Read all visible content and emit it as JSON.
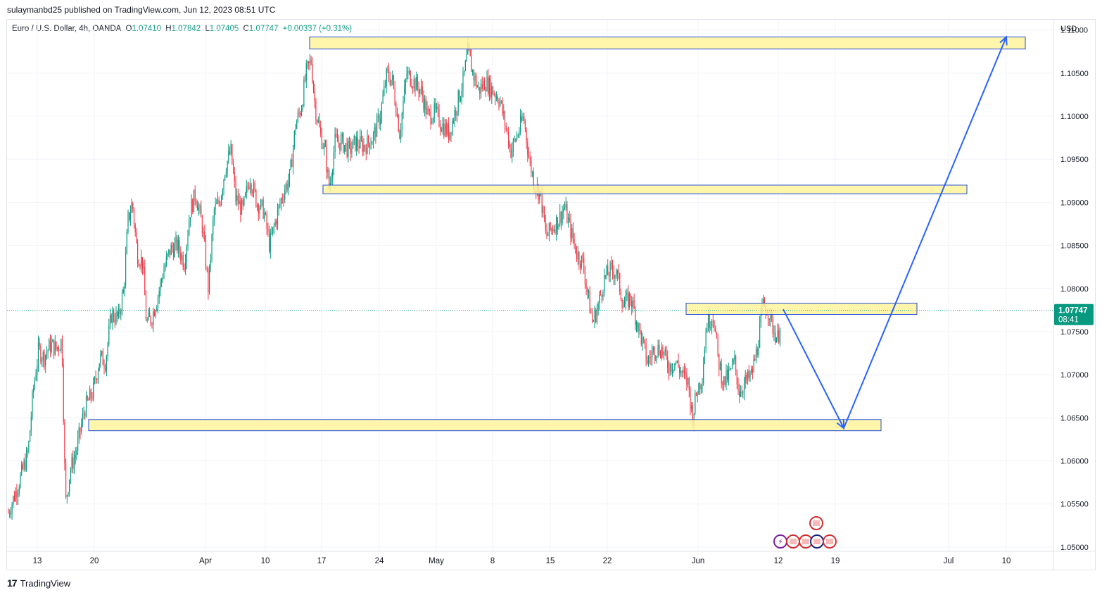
{
  "header": {
    "text": "sulaymanbd25 published on TradingView.com, Jun 12, 2023 08:51 UTC"
  },
  "symbol": {
    "name": "Euro / U.S. Dollar, 4h, OANDA",
    "open_label": "O",
    "open": "1.07410",
    "high_label": "H",
    "high": "1.07842",
    "low_label": "L",
    "low": "1.07405",
    "close_label": "C",
    "close": "1.07747",
    "change": "+0.00337 (+0.31%)"
  },
  "currency": "USD",
  "price_tag": {
    "price": "1.07747",
    "countdown": "08:41",
    "color": "#089981"
  },
  "colors": {
    "up": "#089981",
    "down": "#f23645",
    "zone_fill": "#fff59d",
    "zone_border": "#1e4bd8",
    "arrow": "#2962ff",
    "grid": "#f0f3fa"
  },
  "footer": {
    "brand": "TradingView"
  },
  "chart_data": {
    "type": "candlestick",
    "title": "Euro / U.S. Dollar, 4h, OANDA",
    "ylim": [
      1.0495,
      1.1112
    ],
    "y_ticks": [
      "1.05000",
      "1.05500",
      "1.06000",
      "1.06500",
      "1.07000",
      "1.07500",
      "1.08000",
      "1.08500",
      "1.09000",
      "1.09500",
      "1.10000",
      "1.10500",
      "1.11000"
    ],
    "x_ticks": [
      {
        "label": "13",
        "x": 53
      },
      {
        "label": "20",
        "x": 134
      },
      {
        "label": "Apr",
        "x": 292
      },
      {
        "label": "10",
        "x": 377
      },
      {
        "label": "17",
        "x": 457
      },
      {
        "label": "24",
        "x": 539
      },
      {
        "label": "May",
        "x": 620
      },
      {
        "label": "8",
        "x": 700
      },
      {
        "label": "15",
        "x": 782
      },
      {
        "label": "22",
        "x": 863
      },
      {
        "label": "Jun",
        "x": 992
      },
      {
        "label": "12",
        "x": 1106
      },
      {
        "label": "19",
        "x": 1187
      },
      {
        "label": "Jul",
        "x": 1348
      },
      {
        "label": "10",
        "x": 1430
      }
    ],
    "last_price": 1.07747,
    "zones": [
      {
        "name": "resistance-top",
        "x0": 440,
        "x1": 1457,
        "y0": 1.1078,
        "y1": 1.1092
      },
      {
        "name": "resistance-mid",
        "x0": 459,
        "x1": 1374,
        "y0": 1.091,
        "y1": 1.092
      },
      {
        "name": "current-zone",
        "x0": 975,
        "x1": 1303,
        "y0": 1.077,
        "y1": 1.0783
      },
      {
        "name": "support-bottom",
        "x0": 126,
        "x1": 1252,
        "y0": 1.0635,
        "y1": 1.0648
      }
    ],
    "projection": [
      {
        "x": 1113,
        "y": 1.0776
      },
      {
        "x": 1199,
        "y": 1.0638
      },
      {
        "x": 1430,
        "y": 1.1092
      }
    ],
    "close_path": [
      {
        "x": 12,
        "y": 1.054
      },
      {
        "x": 25,
        "y": 1.057
      },
      {
        "x": 40,
        "y": 1.061
      },
      {
        "x": 47,
        "y": 1.068
      },
      {
        "x": 55,
        "y": 1.073
      },
      {
        "x": 62,
        "y": 1.072
      },
      {
        "x": 72,
        "y": 1.0735
      },
      {
        "x": 80,
        "y": 1.073
      },
      {
        "x": 88,
        "y": 1.074
      },
      {
        "x": 93,
        "y": 1.055
      },
      {
        "x": 100,
        "y": 1.059
      },
      {
        "x": 108,
        "y": 1.061
      },
      {
        "x": 120,
        "y": 1.066
      },
      {
        "x": 132,
        "y": 1.068
      },
      {
        "x": 142,
        "y": 1.072
      },
      {
        "x": 150,
        "y": 1.0715
      },
      {
        "x": 158,
        "y": 1.077
      },
      {
        "x": 168,
        "y": 1.0765
      },
      {
        "x": 176,
        "y": 1.08
      },
      {
        "x": 182,
        "y": 1.088
      },
      {
        "x": 188,
        "y": 1.09
      },
      {
        "x": 195,
        "y": 1.084
      },
      {
        "x": 203,
        "y": 1.083
      },
      {
        "x": 208,
        "y": 1.076
      },
      {
        "x": 215,
        "y": 1.0765
      },
      {
        "x": 224,
        "y": 1.079
      },
      {
        "x": 232,
        "y": 1.082
      },
      {
        "x": 242,
        "y": 1.0845
      },
      {
        "x": 252,
        "y": 1.085
      },
      {
        "x": 262,
        "y": 1.083
      },
      {
        "x": 270,
        "y": 1.089
      },
      {
        "x": 278,
        "y": 1.091
      },
      {
        "x": 288,
        "y": 1.087
      },
      {
        "x": 296,
        "y": 1.08
      },
      {
        "x": 304,
        "y": 1.089
      },
      {
        "x": 312,
        "y": 1.09
      },
      {
        "x": 320,
        "y": 1.094
      },
      {
        "x": 328,
        "y": 1.096
      },
      {
        "x": 335,
        "y": 1.0905
      },
      {
        "x": 345,
        "y": 1.089
      },
      {
        "x": 355,
        "y": 1.093
      },
      {
        "x": 365,
        "y": 1.09
      },
      {
        "x": 375,
        "y": 1.089
      },
      {
        "x": 383,
        "y": 1.085
      },
      {
        "x": 392,
        "y": 1.088
      },
      {
        "x": 402,
        "y": 1.091
      },
      {
        "x": 412,
        "y": 1.093
      },
      {
        "x": 420,
        "y": 1.099
      },
      {
        "x": 428,
        "y": 1.101
      },
      {
        "x": 435,
        "y": 1.105
      },
      {
        "x": 442,
        "y": 1.1065
      },
      {
        "x": 448,
        "y": 1.101
      },
      {
        "x": 455,
        "y": 1.098
      },
      {
        "x": 462,
        "y": 1.096
      },
      {
        "x": 468,
        "y": 1.0915
      },
      {
        "x": 476,
        "y": 1.097
      },
      {
        "x": 486,
        "y": 1.097
      },
      {
        "x": 496,
        "y": 1.096
      },
      {
        "x": 506,
        "y": 1.097
      },
      {
        "x": 518,
        "y": 1.0965
      },
      {
        "x": 530,
        "y": 1.0975
      },
      {
        "x": 540,
        "y": 1.1
      },
      {
        "x": 550,
        "y": 1.105
      },
      {
        "x": 558,
        "y": 1.104
      },
      {
        "x": 568,
        "y": 1.098
      },
      {
        "x": 578,
        "y": 1.105
      },
      {
        "x": 588,
        "y": 1.104
      },
      {
        "x": 598,
        "y": 1.103
      },
      {
        "x": 608,
        "y": 1.1
      },
      {
        "x": 618,
        "y": 1.1005
      },
      {
        "x": 628,
        "y": 1.099
      },
      {
        "x": 638,
        "y": 1.098
      },
      {
        "x": 648,
        "y": 1.101
      },
      {
        "x": 658,
        "y": 1.104
      },
      {
        "x": 665,
        "y": 1.1075
      },
      {
        "x": 672,
        "y": 1.105
      },
      {
        "x": 680,
        "y": 1.103
      },
      {
        "x": 690,
        "y": 1.104
      },
      {
        "x": 700,
        "y": 1.103
      },
      {
        "x": 710,
        "y": 1.102
      },
      {
        "x": 718,
        "y": 1.099
      },
      {
        "x": 726,
        "y": 1.096
      },
      {
        "x": 736,
        "y": 1.098
      },
      {
        "x": 744,
        "y": 1.1
      },
      {
        "x": 752,
        "y": 1.095
      },
      {
        "x": 760,
        "y": 1.092
      },
      {
        "x": 768,
        "y": 1.091
      },
      {
        "x": 776,
        "y": 1.086
      },
      {
        "x": 784,
        "y": 1.087
      },
      {
        "x": 794,
        "y": 1.088
      },
      {
        "x": 802,
        "y": 1.0895
      },
      {
        "x": 810,
        "y": 1.087
      },
      {
        "x": 820,
        "y": 1.084
      },
      {
        "x": 828,
        "y": 1.083
      },
      {
        "x": 836,
        "y": 1.079
      },
      {
        "x": 842,
        "y": 1.076
      },
      {
        "x": 850,
        "y": 1.078
      },
      {
        "x": 858,
        "y": 1.081
      },
      {
        "x": 866,
        "y": 1.082
      },
      {
        "x": 876,
        "y": 1.082
      },
      {
        "x": 886,
        "y": 1.078
      },
      {
        "x": 896,
        "y": 1.079
      },
      {
        "x": 904,
        "y": 1.0765
      },
      {
        "x": 912,
        "y": 1.074
      },
      {
        "x": 920,
        "y": 1.0715
      },
      {
        "x": 930,
        "y": 1.073
      },
      {
        "x": 940,
        "y": 1.073
      },
      {
        "x": 950,
        "y": 1.071
      },
      {
        "x": 960,
        "y": 1.0715
      },
      {
        "x": 970,
        "y": 1.07
      },
      {
        "x": 978,
        "y": 1.069
      },
      {
        "x": 984,
        "y": 1.065
      },
      {
        "x": 990,
        "y": 1.068
      },
      {
        "x": 998,
        "y": 1.07
      },
      {
        "x": 1004,
        "y": 1.076
      },
      {
        "x": 1014,
        "y": 1.077
      },
      {
        "x": 1020,
        "y": 1.072
      },
      {
        "x": 1028,
        "y": 1.069
      },
      {
        "x": 1036,
        "y": 1.07
      },
      {
        "x": 1044,
        "y": 1.0715
      },
      {
        "x": 1050,
        "y": 1.068
      },
      {
        "x": 1058,
        "y": 1.069
      },
      {
        "x": 1068,
        "y": 1.07
      },
      {
        "x": 1076,
        "y": 1.073
      },
      {
        "x": 1084,
        "y": 1.078
      },
      {
        "x": 1092,
        "y": 1.0775
      },
      {
        "x": 1100,
        "y": 1.075
      },
      {
        "x": 1106,
        "y": 1.0741
      },
      {
        "x": 1110,
        "y": 1.0775
      }
    ]
  }
}
